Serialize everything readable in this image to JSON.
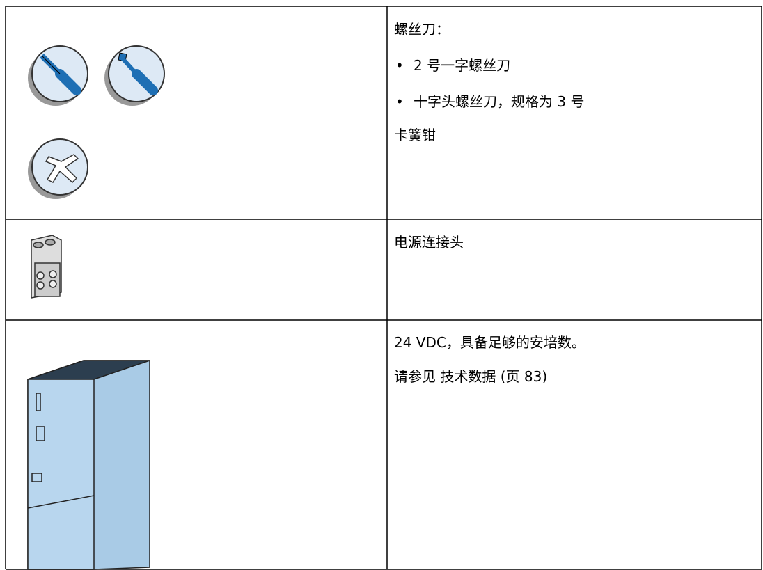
{
  "table": {
    "rows": [
      {
        "heading": "螺丝刀：",
        "items": [
          "2 号一字螺丝刀",
          "十字头螺丝刀，规格为 3 号"
        ],
        "note": "卡簧钳"
      },
      {
        "text": "电源连接头"
      },
      {
        "lines": [
          "24 VDC，具备足够的安培数。",
          "请参见 技术数据 (页 83)"
        ]
      }
    ]
  }
}
